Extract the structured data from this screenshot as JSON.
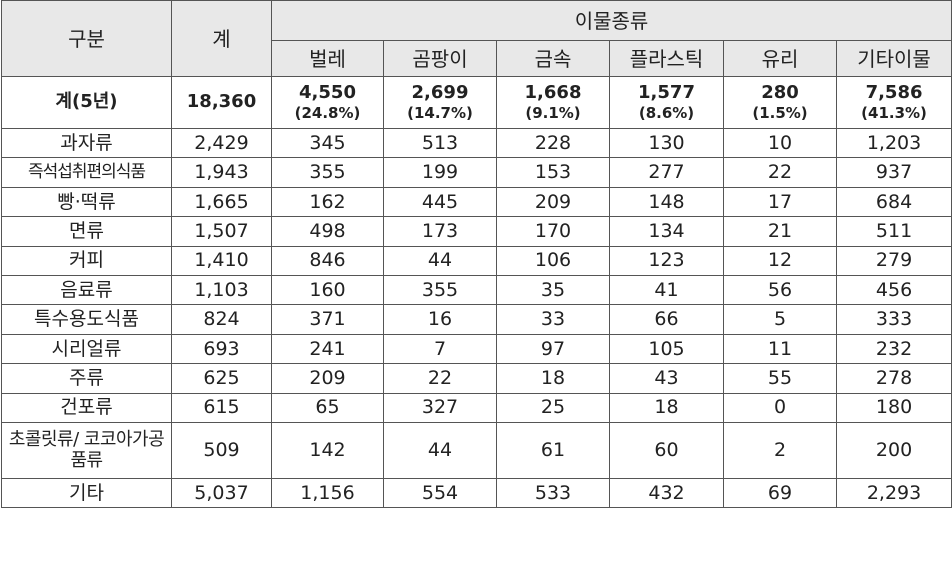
{
  "header": {
    "category": "구분",
    "total": "계",
    "group": "이물종류",
    "types": [
      "벌레",
      "곰팡이",
      "금속",
      "플라스틱",
      "유리",
      "기타이물"
    ]
  },
  "summary": {
    "label": "계(5년)",
    "total": "18,360",
    "values": [
      {
        "value": "4,550",
        "pct": "(24.8%)"
      },
      {
        "value": "2,699",
        "pct": "(14.7%)"
      },
      {
        "value": "1,668",
        "pct": "(9.1%)"
      },
      {
        "value": "1,577",
        "pct": "(8.6%)"
      },
      {
        "value": "280",
        "pct": "(1.5%)"
      },
      {
        "value": "7,586",
        "pct": "(41.3%)"
      }
    ]
  },
  "rows": [
    {
      "name": "과자류",
      "total": "2,429",
      "values": [
        "345",
        "513",
        "228",
        "130",
        "10",
        "1,203"
      ]
    },
    {
      "name": "즉석섭취편의식품",
      "total": "1,943",
      "values": [
        "355",
        "199",
        "153",
        "277",
        "22",
        "937"
      ]
    },
    {
      "name": "빵·떡류",
      "total": "1,665",
      "values": [
        "162",
        "445",
        "209",
        "148",
        "17",
        "684"
      ]
    },
    {
      "name": "면류",
      "total": "1,507",
      "values": [
        "498",
        "173",
        "170",
        "134",
        "21",
        "511"
      ]
    },
    {
      "name": "커피",
      "total": "1,410",
      "values": [
        "846",
        "44",
        "106",
        "123",
        "12",
        "279"
      ]
    },
    {
      "name": "음료류",
      "total": "1,103",
      "values": [
        "160",
        "355",
        "35",
        "41",
        "56",
        "456"
      ]
    },
    {
      "name": "특수용도식품",
      "total": "824",
      "values": [
        "371",
        "16",
        "33",
        "66",
        "5",
        "333"
      ]
    },
    {
      "name": "시리얼류",
      "total": "693",
      "values": [
        "241",
        "7",
        "97",
        "105",
        "11",
        "232"
      ]
    },
    {
      "name": "주류",
      "total": "625",
      "values": [
        "209",
        "22",
        "18",
        "43",
        "55",
        "278"
      ]
    },
    {
      "name": "건포류",
      "total": "615",
      "values": [
        "65",
        "327",
        "25",
        "18",
        "0",
        "180"
      ]
    },
    {
      "name": "초콜릿류/ 코코아가공품류",
      "total": "509",
      "values": [
        "142",
        "44",
        "61",
        "60",
        "2",
        "200"
      ]
    },
    {
      "name": "기타",
      "total": "5,037",
      "values": [
        "1,156",
        "554",
        "533",
        "432",
        "69",
        "2,293"
      ]
    }
  ]
}
